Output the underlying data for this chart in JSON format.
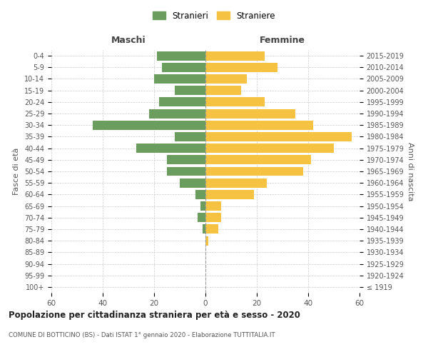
{
  "age_groups": [
    "100+",
    "95-99",
    "90-94",
    "85-89",
    "80-84",
    "75-79",
    "70-74",
    "65-69",
    "60-64",
    "55-59",
    "50-54",
    "45-49",
    "40-44",
    "35-39",
    "30-34",
    "25-29",
    "20-24",
    "15-19",
    "10-14",
    "5-9",
    "0-4"
  ],
  "birth_years": [
    "≤ 1919",
    "1920-1924",
    "1925-1929",
    "1930-1934",
    "1935-1939",
    "1940-1944",
    "1945-1949",
    "1950-1954",
    "1955-1959",
    "1960-1964",
    "1965-1969",
    "1970-1974",
    "1975-1979",
    "1980-1984",
    "1985-1989",
    "1990-1994",
    "1995-1999",
    "2000-2004",
    "2005-2009",
    "2010-2014",
    "2015-2019"
  ],
  "maschi": [
    0,
    0,
    0,
    0,
    0,
    1,
    3,
    2,
    4,
    10,
    15,
    15,
    27,
    12,
    44,
    22,
    18,
    12,
    20,
    17,
    19
  ],
  "femmine": [
    0,
    0,
    0,
    0,
    1,
    5,
    6,
    6,
    19,
    24,
    38,
    41,
    50,
    57,
    42,
    35,
    23,
    14,
    16,
    28,
    23
  ],
  "maschi_color": "#6b9e5e",
  "femmine_color": "#f5c242",
  "background_color": "#ffffff",
  "grid_color": "#cccccc",
  "title": "Popolazione per cittadinanza straniera per età e sesso - 2020",
  "subtitle": "COMUNE DI BOTTICINO (BS) - Dati ISTAT 1° gennaio 2020 - Elaborazione TUTTITALIA.IT",
  "xlabel_left": "Maschi",
  "xlabel_right": "Femmine",
  "ylabel_left": "Fasce di età",
  "ylabel_right": "Anni di nascita",
  "legend_maschi": "Stranieri",
  "legend_femmine": "Straniere",
  "xlim": 60,
  "bar_height": 0.8
}
